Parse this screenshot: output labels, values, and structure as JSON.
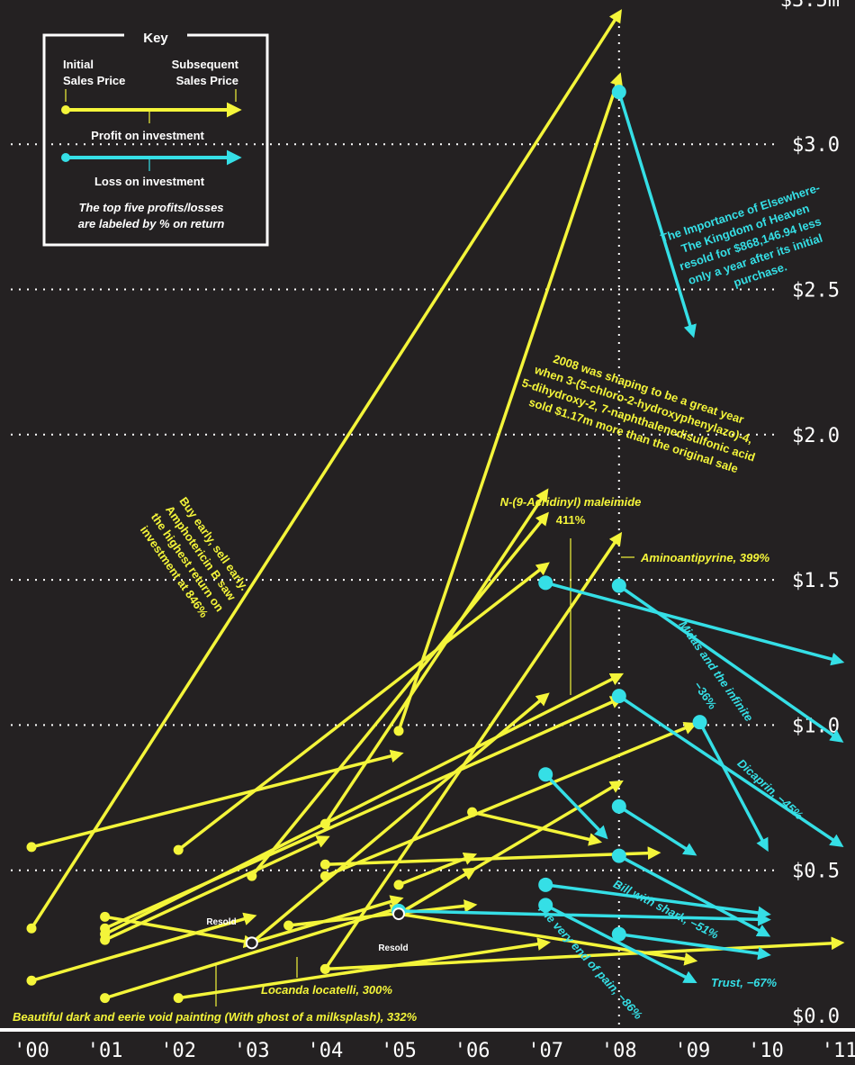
{
  "colors": {
    "background": "#242122",
    "profit": "#f4f53a",
    "loss": "#35dfe6",
    "text": "#ffffff"
  },
  "key": {
    "title": "Key",
    "initial_label_1": "Initial",
    "initial_label_2": "Sales Price",
    "subsequent_label_1": "Subsequent",
    "subsequent_label_2": "Sales Price",
    "profit_label": "Profit on investment",
    "loss_label": "Loss on investment",
    "note_1": "The top five profits/losses",
    "note_2": "are labeled by % on return"
  },
  "annotations": {
    "elsewhere_1": "The Importance of Elsewhere-",
    "elsewhere_2": "The Kingdom of Heaven",
    "elsewhere_3": "resold for $868,146.94 less",
    "elsewhere_4": "only a year after its initial",
    "elsewhere_5": "purchase.",
    "y2008_1": "2008 was shaping to be a great year",
    "y2008_2": "when 3-(5-chloro-2-hydroxyphenylazo)-4,",
    "y2008_3": "5-dihydroxy-2, 7-naphthalenedisulfonic acid",
    "y2008_4": "sold $1.17m more than the original sale",
    "ampho_1": "Buy early, sell early.",
    "ampho_2": "Amphotericin B saw",
    "ampho_3": "the highest return on",
    "ampho_4": "investment at 846%",
    "acridinyl_1": "N-(9-Acridinyl) maleimide",
    "acridinyl_2": "411%",
    "aminoantipyrine": "Aminoantipyrine, 399%",
    "midas_1": "Midas and the infinite",
    "midas_2": "−36%",
    "dicaprin": "Dicaprin, −45%",
    "bill": "Bill with shark, −51%",
    "trust": "Trust, −67%",
    "pain": "The very end of pain, −86%",
    "locanda": "Locanda locatelli, 300%",
    "beautiful": "Beautiful dark and eerie void painting (With ghost of a milksplash), 332%",
    "resold_1": "Resold",
    "resold_2": "Resold"
  },
  "chart_data": {
    "type": "arrow-scatter",
    "x_ticks": [
      "'00",
      "'01",
      "'02",
      "'03",
      "'04",
      "'05",
      "'06",
      "'07",
      "'08",
      "'09",
      "'10",
      "'11"
    ],
    "y_ticks": [
      "$0.0",
      "$0.5",
      "$1.0",
      "$1.5",
      "$2.0",
      "$2.5",
      "$3.0",
      "$3.5m"
    ],
    "xlim": [
      2000,
      2011.3
    ],
    "ylim": [
      0,
      3.5
    ],
    "y_unit": "$m",
    "grid": "dotted horizontal, dotted vertical at 2008",
    "series": [
      {
        "name": "Profit on investment",
        "arrows": [
          {
            "x0": 2000.0,
            "y0": 0.3,
            "x1": 2008.0,
            "y1": 3.45
          },
          {
            "x0": 2000.0,
            "y0": 0.58,
            "x1": 2005.0,
            "y1": 0.9
          },
          {
            "x0": 2000.0,
            "y0": 0.12,
            "x1": 2003.0,
            "y1": 0.34
          },
          {
            "x0": 2001.0,
            "y0": 0.06,
            "x1": 2005.0,
            "y1": 0.37
          },
          {
            "x0": 2001.0,
            "y0": 0.28,
            "x1": 2008.0,
            "y1": 1.17
          },
          {
            "x0": 2001.0,
            "y0": 0.3,
            "x1": 2008.0,
            "y1": 1.09
          },
          {
            "x0": 2001.0,
            "y0": 0.26,
            "x1": 2004.0,
            "y1": 0.61
          },
          {
            "x0": 2001.0,
            "y0": 0.34,
            "x1": 2003.0,
            "y1": 0.25
          },
          {
            "x0": 2002.0,
            "y0": 0.06,
            "x1": 2007.0,
            "y1": 0.25
          },
          {
            "x0": 2002.0,
            "y0": 0.57,
            "x1": 2007.0,
            "y1": 1.55
          },
          {
            "x0": 2003.0,
            "y0": 0.25,
            "x1": 2007.0,
            "y1": 1.1
          },
          {
            "x0": 2003.0,
            "y0": 0.25,
            "x1": 2005.0,
            "y1": 0.4
          },
          {
            "x0": 2003.0,
            "y0": 0.48,
            "x1": 2007.0,
            "y1": 1.72
          },
          {
            "x0": 2003.5,
            "y0": 0.31,
            "x1": 2006.0,
            "y1": 0.38
          },
          {
            "x0": 2004.0,
            "y0": 0.66,
            "x1": 2007.0,
            "y1": 1.8
          },
          {
            "x0": 2004.0,
            "y0": 0.48,
            "x1": 2009.0,
            "y1": 1.0
          },
          {
            "x0": 2004.0,
            "y0": 0.52,
            "x1": 2008.5,
            "y1": 0.56
          },
          {
            "x0": 2004.0,
            "y0": 0.16,
            "x1": 2008.0,
            "y1": 1.65
          },
          {
            "x0": 2004.0,
            "y0": 0.16,
            "x1": 2011.0,
            "y1": 0.25
          },
          {
            "x0": 2005.0,
            "y0": 0.45,
            "x1": 2006.0,
            "y1": 0.55
          },
          {
            "x0": 2005.0,
            "y0": 0.98,
            "x1": 2008.0,
            "y1": 3.23
          },
          {
            "x0": 2005.0,
            "y0": 0.35,
            "x1": 2006.0,
            "y1": 0.5
          },
          {
            "x0": 2005.0,
            "y0": 0.35,
            "x1": 2008.0,
            "y1": 0.8
          },
          {
            "x0": 2006.0,
            "y0": 0.7,
            "x1": 2007.7,
            "y1": 0.6
          },
          {
            "x0": 2005.0,
            "y0": 0.35,
            "x1": 2009.0,
            "y1": 0.19
          }
        ]
      },
      {
        "name": "Loss on investment",
        "arrows": [
          {
            "x0": 2008.0,
            "y0": 3.18,
            "x1": 2009.0,
            "y1": 2.35
          },
          {
            "x0": 2007.0,
            "y0": 1.49,
            "x1": 2011.0,
            "y1": 1.22
          },
          {
            "x0": 2008.0,
            "y0": 1.48,
            "x1": 2011.0,
            "y1": 0.95
          },
          {
            "x0": 2008.0,
            "y0": 1.1,
            "x1": 2011.0,
            "y1": 0.59
          },
          {
            "x0": 2009.1,
            "y0": 1.01,
            "x1": 2010.0,
            "y1": 0.58
          },
          {
            "x0": 2007.0,
            "y0": 0.83,
            "x1": 2007.8,
            "y1": 0.62
          },
          {
            "x0": 2008.0,
            "y0": 0.72,
            "x1": 2009.0,
            "y1": 0.56
          },
          {
            "x0": 2008.0,
            "y0": 0.55,
            "x1": 2010.0,
            "y1": 0.28
          },
          {
            "x0": 2007.0,
            "y0": 0.45,
            "x1": 2010.0,
            "y1": 0.35
          },
          {
            "x0": 2007.0,
            "y0": 0.38,
            "x1": 2009.0,
            "y1": 0.12
          },
          {
            "x0": 2008.0,
            "y0": 0.28,
            "x1": 2010.0,
            "y1": 0.21
          },
          {
            "x0": 2005.0,
            "y0": 0.36,
            "x1": 2010.0,
            "y1": 0.33
          }
        ]
      }
    ]
  }
}
